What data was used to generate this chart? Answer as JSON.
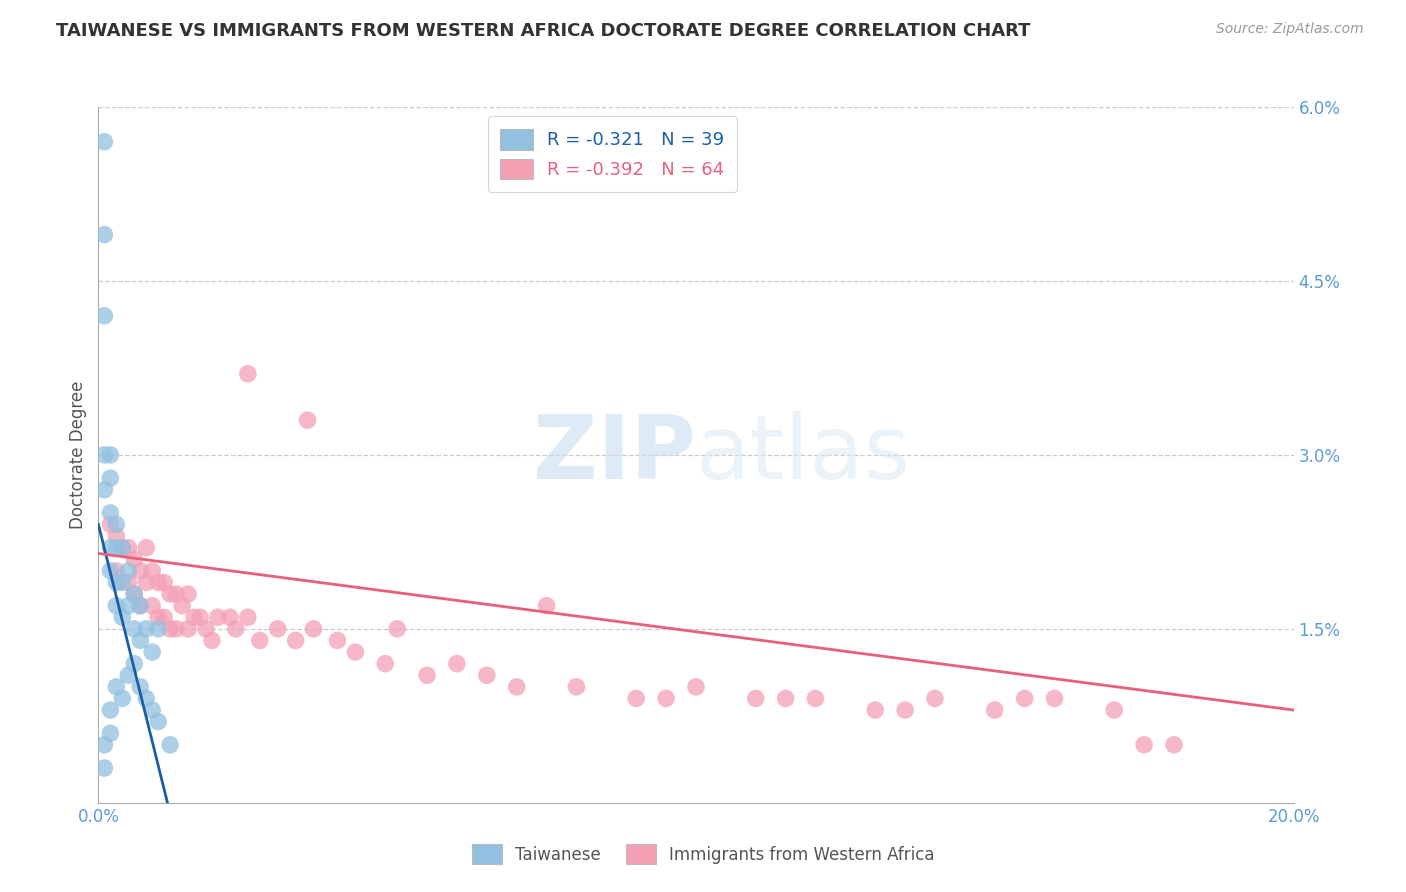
{
  "title": "TAIWANESE VS IMMIGRANTS FROM WESTERN AFRICA DOCTORATE DEGREE CORRELATION CHART",
  "source": "Source: ZipAtlas.com",
  "ylabel": "Doctorate Degree",
  "xlim": [
    0.0,
    0.2
  ],
  "ylim": [
    0.0,
    0.06
  ],
  "xtick_positions": [
    0.0,
    0.2
  ],
  "xtick_labels": [
    "0.0%",
    "20.0%"
  ],
  "yticks_right": [
    0.015,
    0.03,
    0.045,
    0.06
  ],
  "ytick_labels_right": [
    "1.5%",
    "3.0%",
    "4.5%",
    "6.0%"
  ],
  "ytick_grid": [
    0.015,
    0.03,
    0.045,
    0.06
  ],
  "blue_color": "#92C0E0",
  "pink_color": "#F4A0B5",
  "blue_line_color": "#1A5EA8",
  "pink_line_color": "#E8607A",
  "R_blue": -0.321,
  "N_blue": 39,
  "R_pink": -0.392,
  "N_pink": 64,
  "legend_label_blue": "Taiwanese",
  "legend_label_pink": "Immigrants from Western Africa",
  "background_color": "#ffffff",
  "grid_color": "#cccccc",
  "blue_x": [
    0.001,
    0.001,
    0.001,
    0.001,
    0.001,
    0.002,
    0.002,
    0.002,
    0.002,
    0.002,
    0.003,
    0.003,
    0.003,
    0.003,
    0.004,
    0.004,
    0.004,
    0.005,
    0.005,
    0.006,
    0.006,
    0.007,
    0.007,
    0.008,
    0.009,
    0.01,
    0.001,
    0.001,
    0.002,
    0.002,
    0.003,
    0.004,
    0.005,
    0.006,
    0.007,
    0.008,
    0.009,
    0.01,
    0.012
  ],
  "blue_y": [
    0.057,
    0.049,
    0.042,
    0.03,
    0.027,
    0.03,
    0.028,
    0.025,
    0.022,
    0.02,
    0.024,
    0.022,
    0.019,
    0.017,
    0.022,
    0.019,
    0.016,
    0.02,
    0.017,
    0.018,
    0.015,
    0.017,
    0.014,
    0.015,
    0.013,
    0.015,
    0.005,
    0.003,
    0.008,
    0.006,
    0.01,
    0.009,
    0.011,
    0.012,
    0.01,
    0.009,
    0.008,
    0.007,
    0.005
  ],
  "pink_x": [
    0.002,
    0.003,
    0.003,
    0.004,
    0.005,
    0.005,
    0.006,
    0.006,
    0.007,
    0.007,
    0.008,
    0.008,
    0.009,
    0.009,
    0.01,
    0.01,
    0.011,
    0.011,
    0.012,
    0.012,
    0.013,
    0.013,
    0.014,
    0.015,
    0.015,
    0.016,
    0.017,
    0.018,
    0.019,
    0.02,
    0.022,
    0.023,
    0.025,
    0.027,
    0.03,
    0.033,
    0.036,
    0.04,
    0.043,
    0.048,
    0.055,
    0.06,
    0.065,
    0.07,
    0.08,
    0.09,
    0.1,
    0.11,
    0.12,
    0.13,
    0.14,
    0.15,
    0.16,
    0.17,
    0.18,
    0.025,
    0.035,
    0.05,
    0.075,
    0.095,
    0.115,
    0.135,
    0.155,
    0.175
  ],
  "pink_y": [
    0.024,
    0.023,
    0.02,
    0.022,
    0.022,
    0.019,
    0.021,
    0.018,
    0.02,
    0.017,
    0.022,
    0.019,
    0.02,
    0.017,
    0.019,
    0.016,
    0.019,
    0.016,
    0.018,
    0.015,
    0.018,
    0.015,
    0.017,
    0.018,
    0.015,
    0.016,
    0.016,
    0.015,
    0.014,
    0.016,
    0.016,
    0.015,
    0.016,
    0.014,
    0.015,
    0.014,
    0.015,
    0.014,
    0.013,
    0.012,
    0.011,
    0.012,
    0.011,
    0.01,
    0.01,
    0.009,
    0.01,
    0.009,
    0.009,
    0.008,
    0.009,
    0.008,
    0.009,
    0.008,
    0.005,
    0.037,
    0.033,
    0.015,
    0.017,
    0.009,
    0.009,
    0.008,
    0.009,
    0.005
  ],
  "blue_line_x": [
    0.0,
    0.013
  ],
  "blue_line_y": [
    0.024,
    -0.003
  ],
  "pink_line_x": [
    0.0,
    0.2
  ],
  "pink_line_y": [
    0.0215,
    0.008
  ]
}
